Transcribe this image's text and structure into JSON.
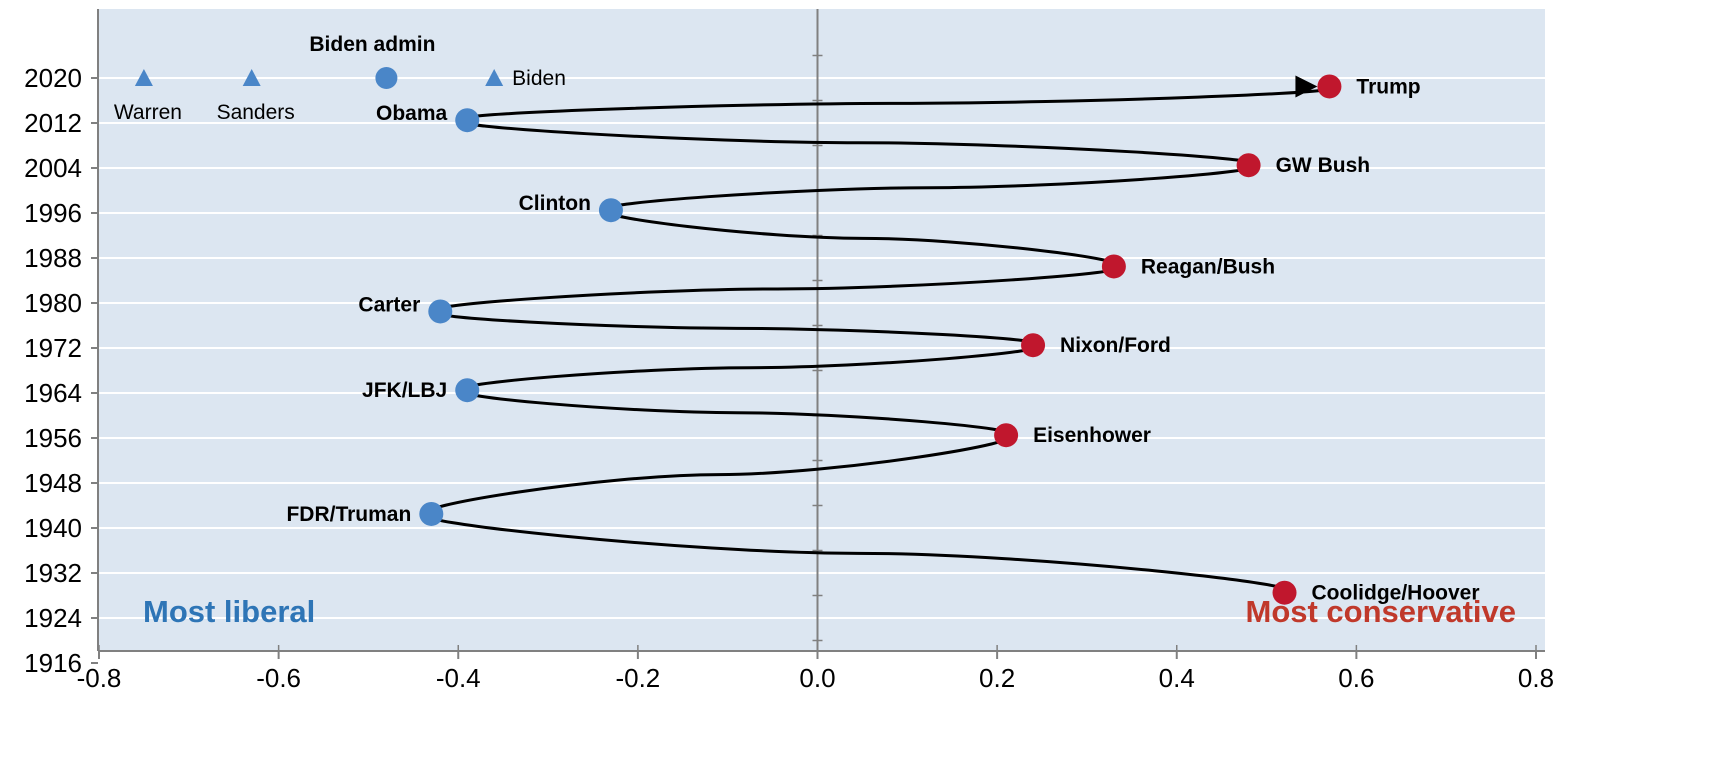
{
  "chart_data": {
    "type": "scatter",
    "title": "",
    "xlabel": "",
    "ylabel": "",
    "xlim": [
      -0.8,
      0.8
    ],
    "ylim": [
      1916,
      2028
    ],
    "x_ticks": [
      "-0.8",
      "-0.6",
      "-0.4",
      "-0.2",
      "0.0",
      "0.2",
      "0.4",
      "0.6",
      "0.8"
    ],
    "x_tick_values": [
      -0.8,
      -0.6,
      -0.4,
      -0.2,
      0.0,
      0.2,
      0.4,
      0.6,
      0.8
    ],
    "y_ticks": [
      "2020",
      "2012",
      "2004",
      "1996",
      "1988",
      "1980",
      "1972",
      "1964",
      "1956",
      "1948",
      "1940",
      "1932",
      "1924",
      "1916"
    ],
    "y_tick_values": [
      2020,
      2012,
      2004,
      1996,
      1988,
      1980,
      1972,
      1964,
      1956,
      1948,
      1940,
      1932,
      1924,
      1916
    ],
    "grid": "horizontal",
    "background_color": "#dce6f1",
    "colors": {
      "democrat": "#4a86c8",
      "republican": "#c0172d",
      "line": "#000000",
      "zero_line": "#808080"
    },
    "corner_labels": {
      "left": "Most liberal",
      "right": "Most conservative",
      "left_color": "#2e75b6",
      "right_color": "#c0392b"
    },
    "administrations": [
      {
        "name": "Coolidge/Hoover",
        "x": 0.52,
        "y": 1928.5,
        "party": "republican"
      },
      {
        "name": "FDR/Truman",
        "x": -0.43,
        "y": 1942.5,
        "party": "democrat"
      },
      {
        "name": "Eisenhower",
        "x": 0.21,
        "y": 1956.5,
        "party": "republican"
      },
      {
        "name": "JFK/LBJ",
        "x": -0.39,
        "y": 1964.5,
        "party": "democrat"
      },
      {
        "name": "Nixon/Ford",
        "x": 0.24,
        "y": 1972.5,
        "party": "republican"
      },
      {
        "name": "Carter",
        "x": -0.42,
        "y": 1978.5,
        "party": "democrat"
      },
      {
        "name": "Reagan/Bush",
        "x": 0.33,
        "y": 1986.5,
        "party": "republican"
      },
      {
        "name": "Clinton",
        "x": -0.23,
        "y": 1996.5,
        "party": "democrat"
      },
      {
        "name": "GW Bush",
        "x": 0.48,
        "y": 2004.5,
        "party": "republican"
      },
      {
        "name": "Obama",
        "x": -0.39,
        "y": 2012.5,
        "party": "democrat"
      },
      {
        "name": "Trump",
        "x": 0.57,
        "y": 2018.5,
        "party": "republican"
      }
    ],
    "candidates": [
      {
        "name": "Warren",
        "x": -0.75,
        "y": 2020,
        "marker": "triangle"
      },
      {
        "name": "Sanders",
        "x": -0.63,
        "y": 2020,
        "marker": "triangle"
      },
      {
        "name": "Biden",
        "x": -0.36,
        "y": 2020,
        "marker": "triangle"
      },
      {
        "name": "Biden admin",
        "x": -0.48,
        "y": 2020,
        "marker": "circle"
      }
    ]
  }
}
